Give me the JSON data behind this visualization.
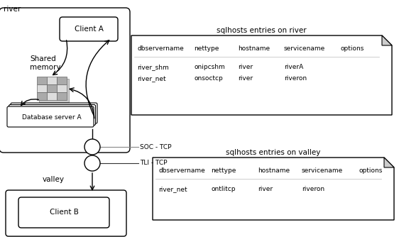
{
  "bg_color": "#ffffff",
  "fig_width": 5.62,
  "fig_height": 3.34,
  "title_river": "river",
  "title_valley": "valley",
  "label_client_a": "Client A",
  "label_client_b": "Client B",
  "label_shared_memory": "Shared\nmemory",
  "label_db_server": "Database server A",
  "label_soc_tcp": "SOC - TCP",
  "label_tli_tcp": "TLI - TCP",
  "table_river_title": "sqlhosts entries on river",
  "table_valley_title": "sqlhosts entries on valley",
  "table_river_headers": [
    "dbservername",
    "nettype",
    "hostname",
    "servicename",
    "options"
  ],
  "table_river_rows": [
    [
      "river_shm",
      "onipcshm",
      "river",
      "riverA",
      ""
    ],
    [
      "river_net",
      "onsoctcp",
      "river",
      "riveron",
      ""
    ]
  ],
  "table_valley_headers": [
    "dbservername",
    "nettype",
    "hostname",
    "servicename",
    "options"
  ],
  "table_valley_rows": [
    [
      "river_net",
      "ontlitcp",
      "river",
      "riveron",
      ""
    ]
  ],
  "text_color": "#000000",
  "box_edge_color": "#000000",
  "box_fill_color": "#ffffff",
  "grid_fill_dark": "#aaaaaa",
  "grid_fill_light": "#dddddd",
  "fold_color": "#cccccc"
}
